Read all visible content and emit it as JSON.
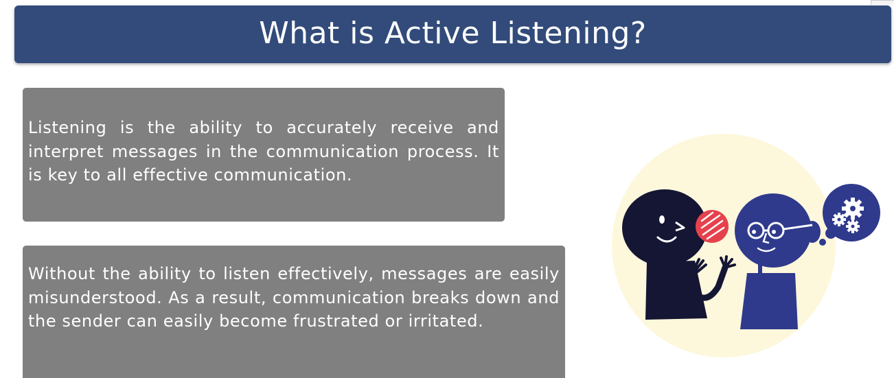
{
  "slide": {
    "title": "What is Active Listening?",
    "paragraph_1": "Listening is the ability to accurately receive and interpret messages in the communication process. It is key to all effective communication.",
    "paragraph_2": "Without the ability to listen effectively, messages are easily misunderstood. As a result, communication breaks down and the sender can easily become frustrated or irritated."
  },
  "colors": {
    "title_bar": "#324b7a",
    "text_box": "#808080",
    "illustration_bg": "#fdf7dc",
    "speaker": "#141633",
    "listener": "#2f3a8c",
    "speech_bubble": "#e5424d",
    "thought_bubble": "#2f3a8c"
  },
  "illustration": {
    "icons": [
      "speaker-figure",
      "listener-figure",
      "speech-bubble-icon",
      "thought-bubble-icon",
      "gears-icon"
    ]
  }
}
